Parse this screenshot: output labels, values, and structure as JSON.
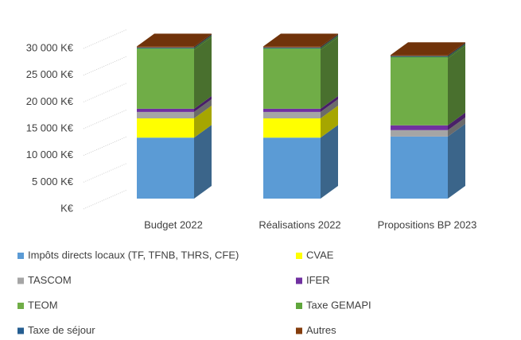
{
  "chart_data": {
    "type": "bar3d_stacked",
    "categories": [
      "Budget 2022",
      "Réalisations 2022",
      "Propositions BP 2023"
    ],
    "series": [
      {
        "name": "Impôts directs locaux (TF, TFNB, THRS, CFE)",
        "color": "#5b9bd5",
        "values": [
          11400,
          11400,
          11600
        ]
      },
      {
        "name": "CVAE",
        "color": "#ffff00",
        "values": [
          3600,
          3600,
          0
        ]
      },
      {
        "name": "TASCOM",
        "color": "#a5a5a5",
        "values": [
          1200,
          1200,
          1200
        ]
      },
      {
        "name": "IFER",
        "color": "#7030a0",
        "values": [
          600,
          600,
          900
        ]
      },
      {
        "name": "TEOM",
        "color": "#70ad47",
        "values": [
          11000,
          11000,
          12500
        ]
      },
      {
        "name": "Taxe GEMAPI",
        "color": "#5fa63c",
        "values": [
          300,
          300,
          300
        ]
      },
      {
        "name": "Taxe de séjour",
        "color": "#255e91",
        "values": [
          150,
          150,
          150
        ]
      },
      {
        "name": "Autres",
        "color": "#843c0c",
        "values": [
          200,
          200,
          200
        ]
      }
    ],
    "ylim": [
      0,
      30000
    ],
    "yticks": [
      {
        "value": 0,
        "label": "K€"
      },
      {
        "value": 5000,
        "label": "5 000 K€"
      },
      {
        "value": 10000,
        "label": "10 000 K€"
      },
      {
        "value": 15000,
        "label": "15 000 K€"
      },
      {
        "value": 20000,
        "label": "20 000 K€"
      },
      {
        "value": 25000,
        "label": "25 000 K€"
      },
      {
        "value": 30000,
        "label": "30 000 K€"
      }
    ],
    "grid": true
  }
}
